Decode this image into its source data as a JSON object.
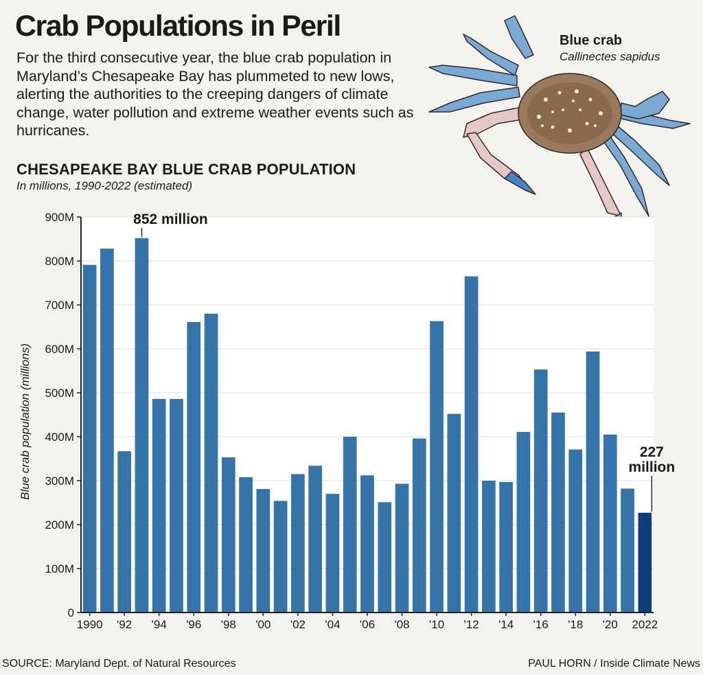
{
  "header": {
    "title": "Crab Populations in Peril",
    "description": "For the third consecutive year, the blue crab population in Maryland’s Chesapeake Bay has plummeted to new lows, alerting the authorities to the creeping dangers of climate change, water pollution and extreme weather events such as hurricanes."
  },
  "illustration": {
    "common_name": "Blue crab",
    "scientific_name": "Callinectes sapidus",
    "icon": "blue-crab-illustration"
  },
  "chart_data": {
    "type": "bar",
    "title": "CHESAPEAKE BAY BLUE CRAB POPULATION",
    "subtitle": "In millions, 1990-2022 (estimated)",
    "xlabel": "",
    "ylabel": "Blue crab population (millions)",
    "ylim": [
      0,
      900
    ],
    "yticks": [
      0,
      100,
      200,
      300,
      400,
      500,
      600,
      700,
      800,
      900
    ],
    "ytick_labels": [
      "0",
      "100M",
      "200M",
      "300M",
      "400M",
      "500M",
      "600M",
      "700M",
      "800M",
      "900M"
    ],
    "categories": [
      "1990",
      "1991",
      "1992",
      "1993",
      "1994",
      "1995",
      "1996",
      "1997",
      "1998",
      "1999",
      "2000",
      "2001",
      "2002",
      "2003",
      "2004",
      "2005",
      "2006",
      "2007",
      "2008",
      "2009",
      "2010",
      "2011",
      "2012",
      "2013",
      "2014",
      "2015",
      "2016",
      "2017",
      "2018",
      "2019",
      "2020",
      "2021",
      "2022"
    ],
    "values": [
      791,
      828,
      367,
      852,
      486,
      486,
      661,
      680,
      353,
      308,
      281,
      254,
      315,
      334,
      270,
      400,
      312,
      251,
      293,
      396,
      663,
      452,
      765,
      300,
      297,
      411,
      553,
      455,
      371,
      594,
      405,
      282,
      227
    ],
    "xtick_labels": [
      {
        "index": 0,
        "label": "1990"
      },
      {
        "index": 2,
        "label": "'92"
      },
      {
        "index": 4,
        "label": "'94"
      },
      {
        "index": 6,
        "label": "'96"
      },
      {
        "index": 8,
        "label": "'98"
      },
      {
        "index": 10,
        "label": "'00"
      },
      {
        "index": 12,
        "label": "'02"
      },
      {
        "index": 14,
        "label": "'04"
      },
      {
        "index": 16,
        "label": "'06"
      },
      {
        "index": 18,
        "label": "'08"
      },
      {
        "index": 20,
        "label": "'10"
      },
      {
        "index": 22,
        "label": "'12"
      },
      {
        "index": 24,
        "label": "'14"
      },
      {
        "index": 26,
        "label": "'16"
      },
      {
        "index": 28,
        "label": "'18"
      },
      {
        "index": 30,
        "label": "'20"
      },
      {
        "index": 32,
        "label": "2022"
      }
    ],
    "annotations": [
      {
        "index": 3,
        "lines": [
          "852 million"
        ]
      },
      {
        "index": 32,
        "lines": [
          "227",
          "million"
        ]
      }
    ],
    "grid": true,
    "colors": {
      "bar": "#3574a8",
      "highlight": "#0d3d7a",
      "grid": "#dedede",
      "plot_bg": "#ffffff"
    },
    "highlight_index": 32
  },
  "footer": {
    "source": "SOURCE: Maryland Dept. of Natural Resources",
    "credit": "PAUL HORN / Inside Climate News"
  }
}
